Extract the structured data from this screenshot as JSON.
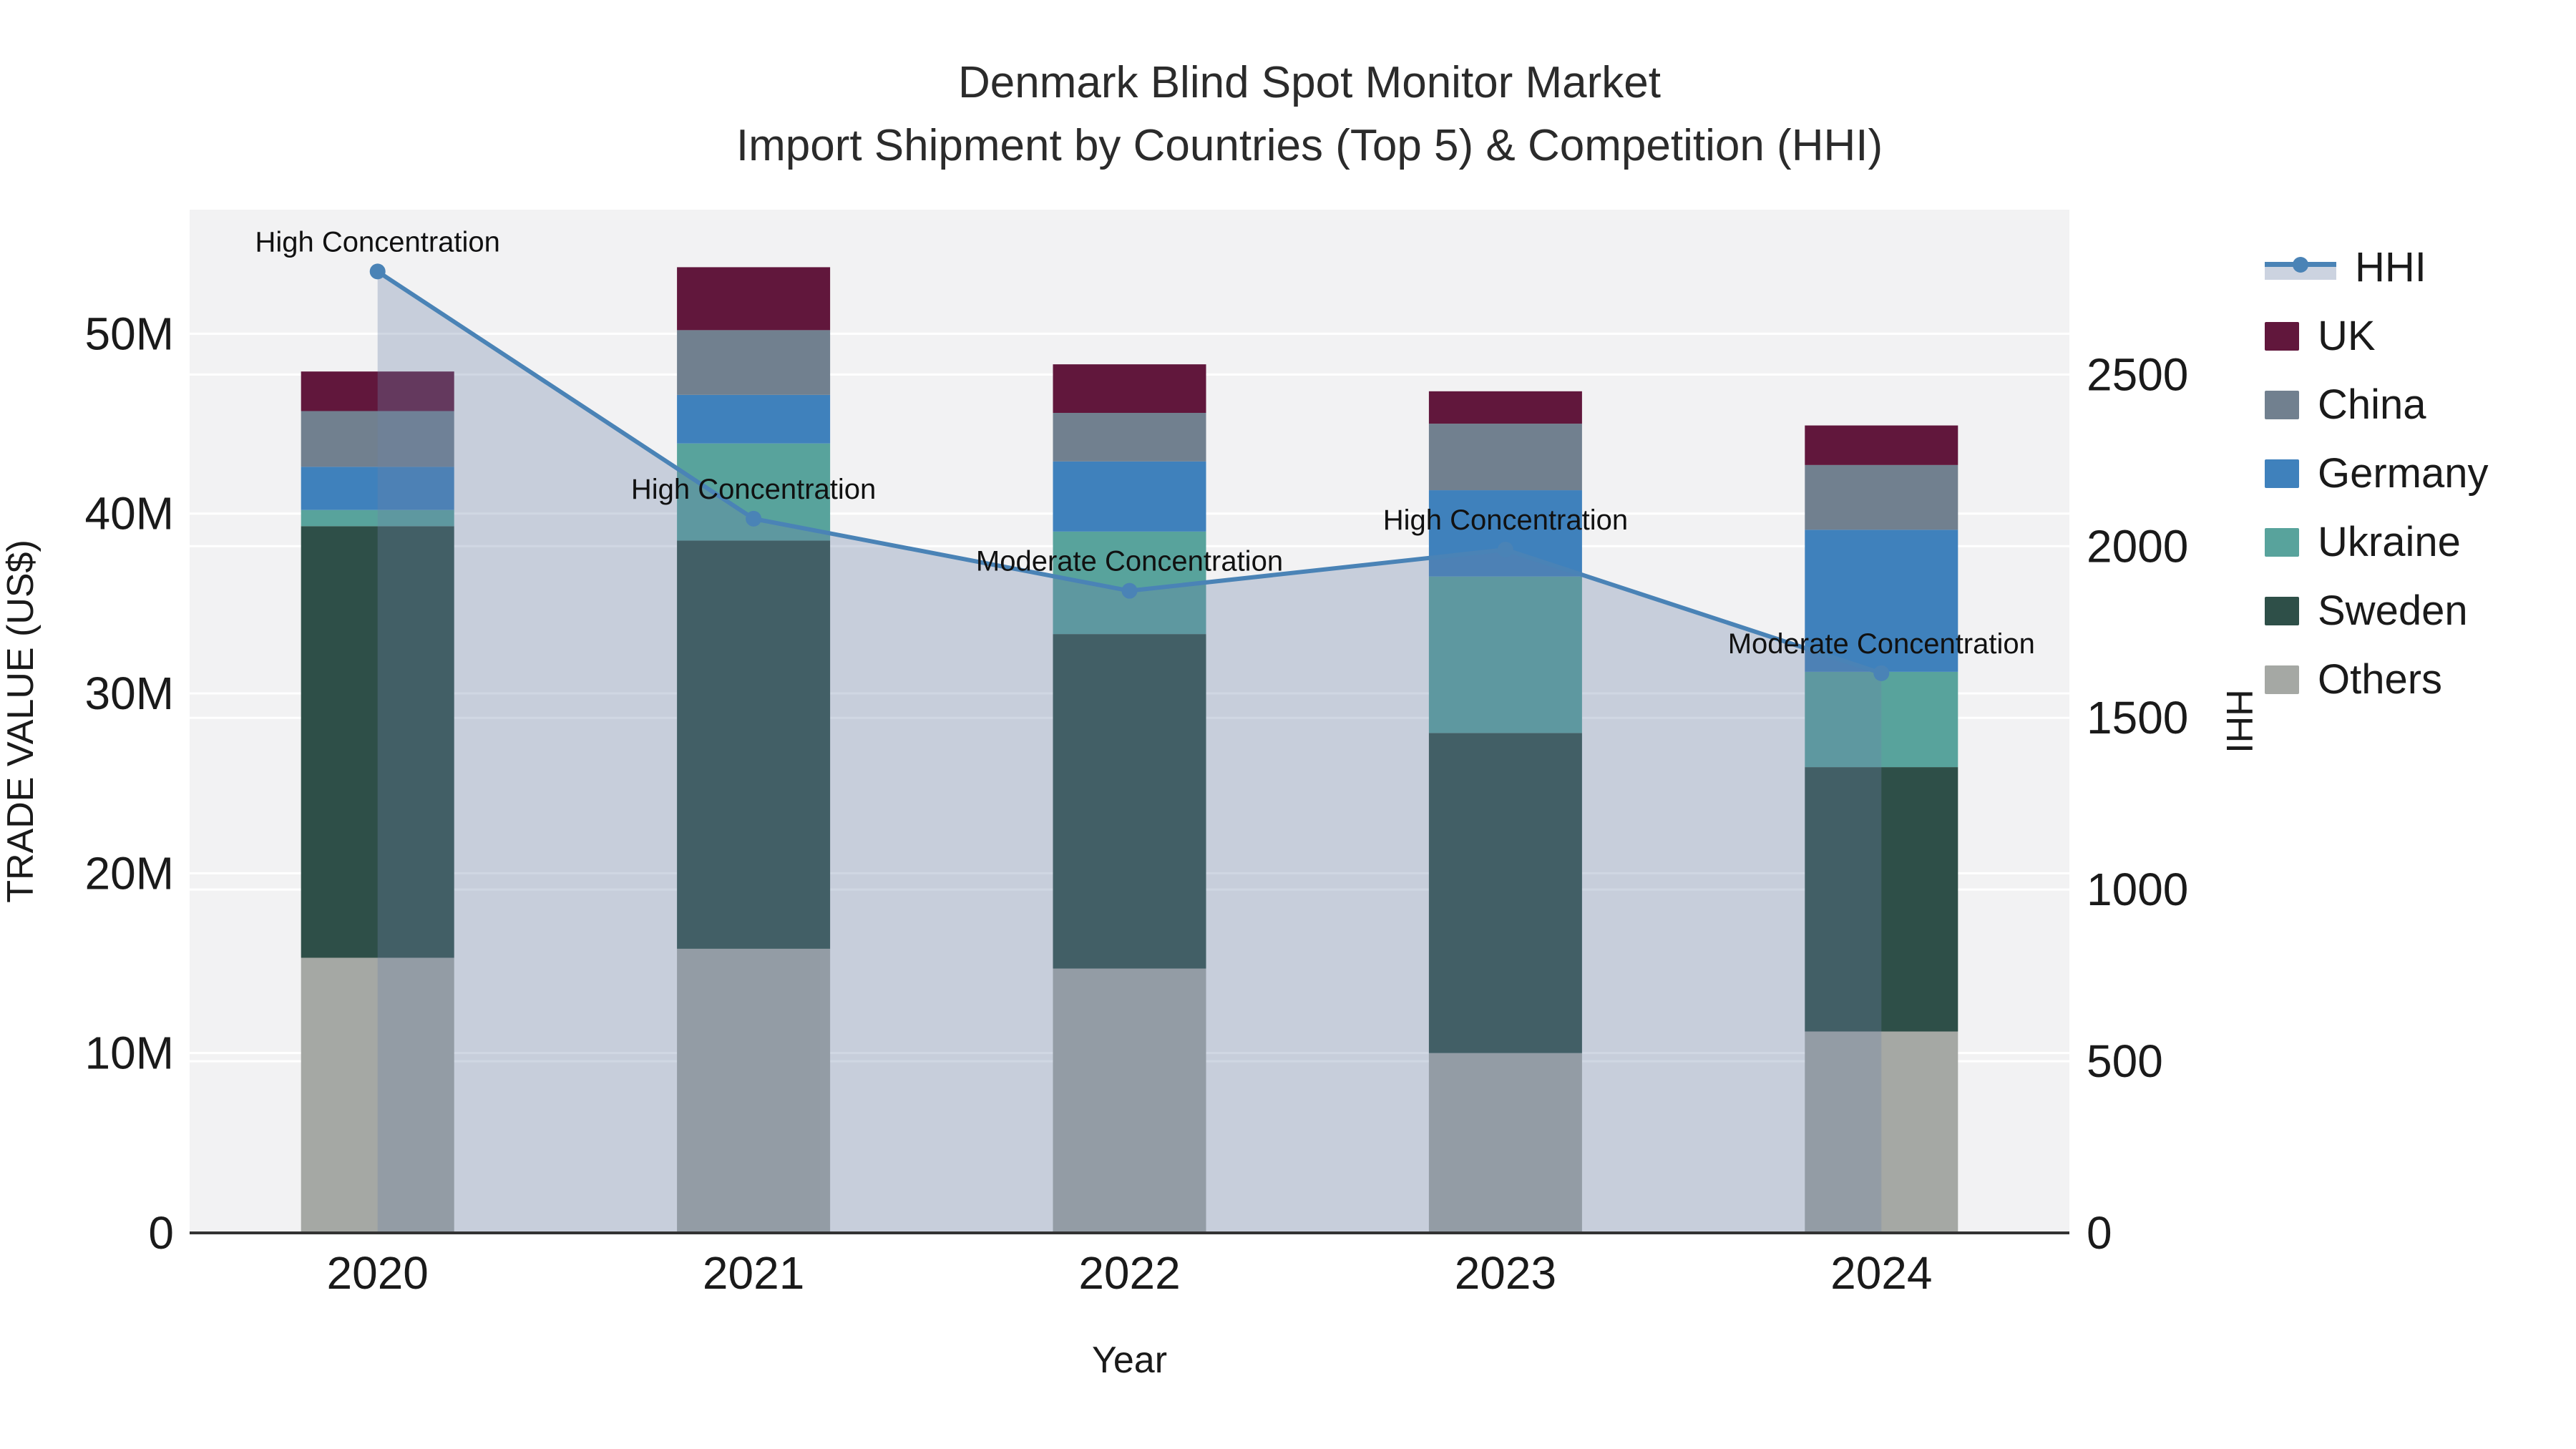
{
  "title": {
    "line1": "Denmark Blind Spot Monitor Market",
    "line2": "Import Shipment by Countries (Top 5) & Competition (HHI)"
  },
  "chart_data": {
    "type": "stacked-bar+line",
    "categories": [
      "2020",
      "2021",
      "2022",
      "2023",
      "2024"
    ],
    "xlabel": "Year",
    "ylabel_left": "TRADE VALUE (US$)",
    "ylabel_right": "HHI",
    "unit_left": "millions USD",
    "ylim_left": [
      0,
      56.9
    ],
    "ylim_right": [
      0,
      2980
    ],
    "yticks_left": {
      "values": [
        0,
        10,
        20,
        30,
        40,
        50
      ],
      "labels": [
        "0",
        "10M",
        "20M",
        "30M",
        "40M",
        "50M"
      ]
    },
    "yticks_right": {
      "values": [
        0,
        500,
        1000,
        1500,
        2000,
        2500
      ],
      "labels": [
        "0",
        "500",
        "1000",
        "1500",
        "2000",
        "2500"
      ]
    },
    "grid": true,
    "legend_position": "right",
    "series": [
      {
        "name": "Others",
        "color": "#a5a8a4",
        "values": [
          15.3,
          15.8,
          14.7,
          10.0,
          11.2
        ]
      },
      {
        "name": "Sweden",
        "color": "#2e4f48",
        "values": [
          24.0,
          22.7,
          18.6,
          17.8,
          14.7
        ]
      },
      {
        "name": "Ukraine",
        "color": "#58a39c",
        "values": [
          0.9,
          5.4,
          5.7,
          8.7,
          5.3
        ]
      },
      {
        "name": "Germany",
        "color": "#3f81bc",
        "values": [
          2.4,
          2.7,
          3.9,
          4.8,
          7.9
        ]
      },
      {
        "name": "China",
        "color": "#71808f",
        "values": [
          3.1,
          3.6,
          2.7,
          3.7,
          3.6
        ]
      },
      {
        "name": "UK",
        "color": "#61173c",
        "values": [
          2.2,
          3.5,
          2.7,
          1.8,
          2.2
        ]
      }
    ],
    "line_series": {
      "name": "HHI",
      "color": "#4a83b6",
      "area_fill": "rgba(110,132,168,0.32)",
      "values": [
        2800,
        2080,
        1870,
        1990,
        1630
      ]
    },
    "annotations": [
      {
        "x": "2020",
        "text": "High Concentration"
      },
      {
        "x": "2021",
        "text": "High Concentration"
      },
      {
        "x": "2022",
        "text": "Moderate Concentration"
      },
      {
        "x": "2023",
        "text": "High Concentration"
      },
      {
        "x": "2024",
        "text": "Moderate Concentration"
      }
    ],
    "colors": {
      "plot_bg": "#f2f2f3",
      "grid": "#ffffff",
      "axis_line": "#333333",
      "tick_text": "#1a1a1a",
      "annotation_text": "#111111"
    }
  },
  "legend": {
    "items": [
      {
        "label": "HHI",
        "type": "line",
        "color": "#4a83b6",
        "fill": "#ccd3e0"
      },
      {
        "label": "UK",
        "type": "swatch",
        "color": "#61173c"
      },
      {
        "label": "China",
        "type": "swatch",
        "color": "#71808f"
      },
      {
        "label": "Germany",
        "type": "swatch",
        "color": "#3f81bc"
      },
      {
        "label": "Ukraine",
        "type": "swatch",
        "color": "#58a39c"
      },
      {
        "label": "Sweden",
        "type": "swatch",
        "color": "#2e4f48"
      },
      {
        "label": "Others",
        "type": "swatch",
        "color": "#a5a8a4"
      }
    ]
  }
}
